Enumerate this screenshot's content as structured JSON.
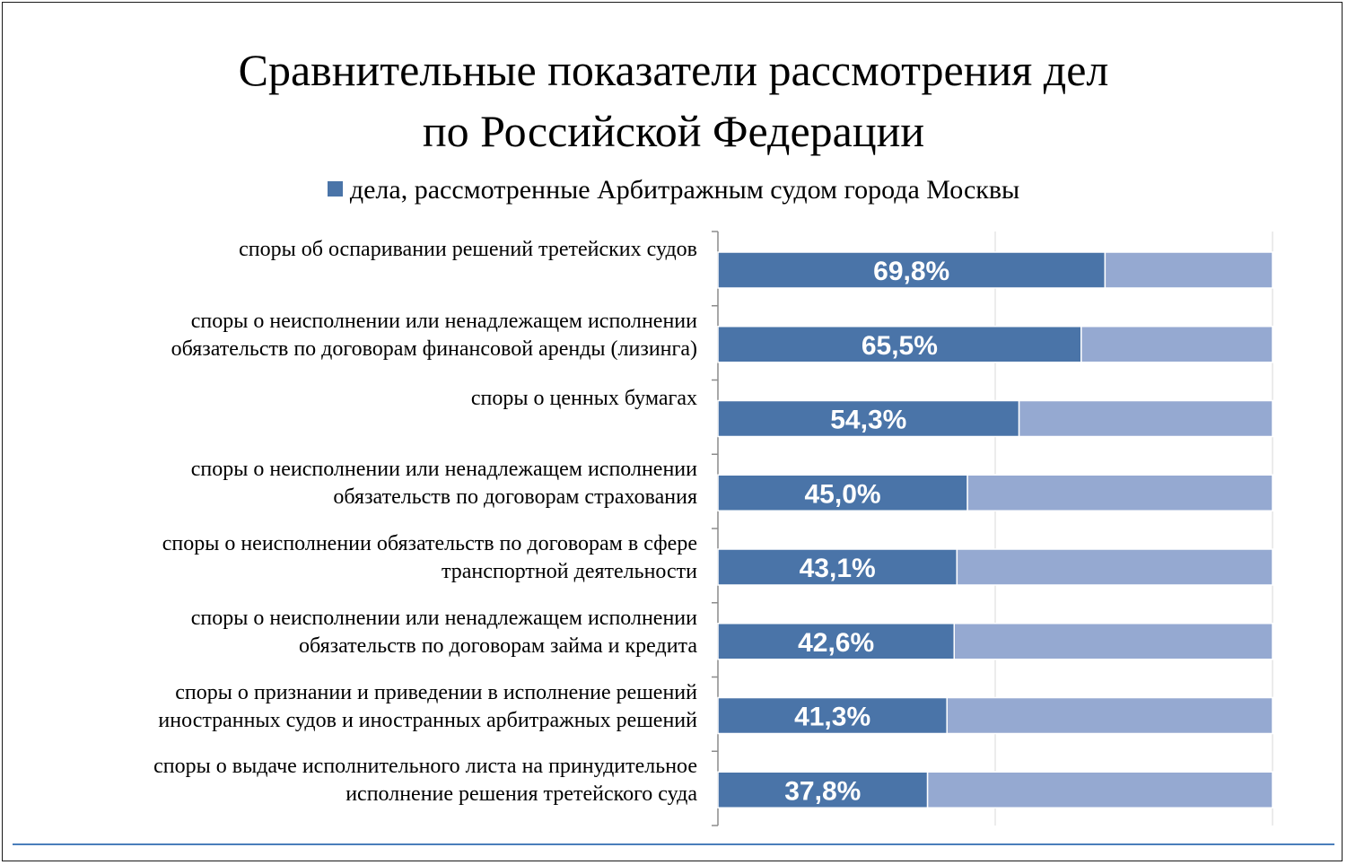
{
  "chart_data": {
    "type": "bar",
    "orientation": "horizontal",
    "stacked": "100%",
    "title_lines": [
      "Сравнительные показатели рассмотрения дел",
      "по Российской Федерации"
    ],
    "legend": {
      "position": "top",
      "entries": [
        "дела, рассмотренные Арбитражным судом города Москвы"
      ]
    },
    "categories": [
      [
        "споры об оспаривании решений третейских судов"
      ],
      [
        "споры о неисполнении или ненадлежащем исполнении",
        "обязательств по договорам финансовой аренды (лизинга)"
      ],
      [
        "споры о ценных бумагах"
      ],
      [
        "споры о неисполнении или ненадлежащем исполнении",
        "обязательств по договорам страхования"
      ],
      [
        "споры о неисполнении обязательств по договорам в сфере",
        "транспортной деятельности"
      ],
      [
        "споры о неисполнении или ненадлежащем исполнении",
        "обязательств по договорам займа и кредита"
      ],
      [
        "споры о признании и приведении в исполнение решений",
        "иностранных судов и иностранных арбитражных решений"
      ],
      [
        "споры о выдаче исполнительного листа на принудительное",
        "исполнение решения третейского суда"
      ]
    ],
    "series": [
      {
        "name": "дела, рассмотренные Арбитражным судом города Москвы",
        "values": [
          69.8,
          65.5,
          54.3,
          45.0,
          43.1,
          42.6,
          41.3,
          37.8
        ],
        "labels": [
          "69,8%",
          "65,5%",
          "54,3%",
          "45,0%",
          "43,1%",
          "42,6%",
          "41,3%",
          "37,8%"
        ],
        "color": "#4a74a8"
      },
      {
        "values": [
          30.2,
          34.5,
          45.7,
          55.0,
          56.9,
          57.4,
          58.7,
          62.2
        ],
        "color": "#95a9d1"
      }
    ],
    "xlim": [
      0,
      100
    ],
    "grid": true
  },
  "colors": {
    "series_primary": "#4a74a8",
    "series_secondary": "#95a9d1",
    "bar_outline": "#ffffff",
    "gridline": "#d9d9d9",
    "axis": "#8c8c8c",
    "bottom_rule": "#4a7ebb"
  }
}
